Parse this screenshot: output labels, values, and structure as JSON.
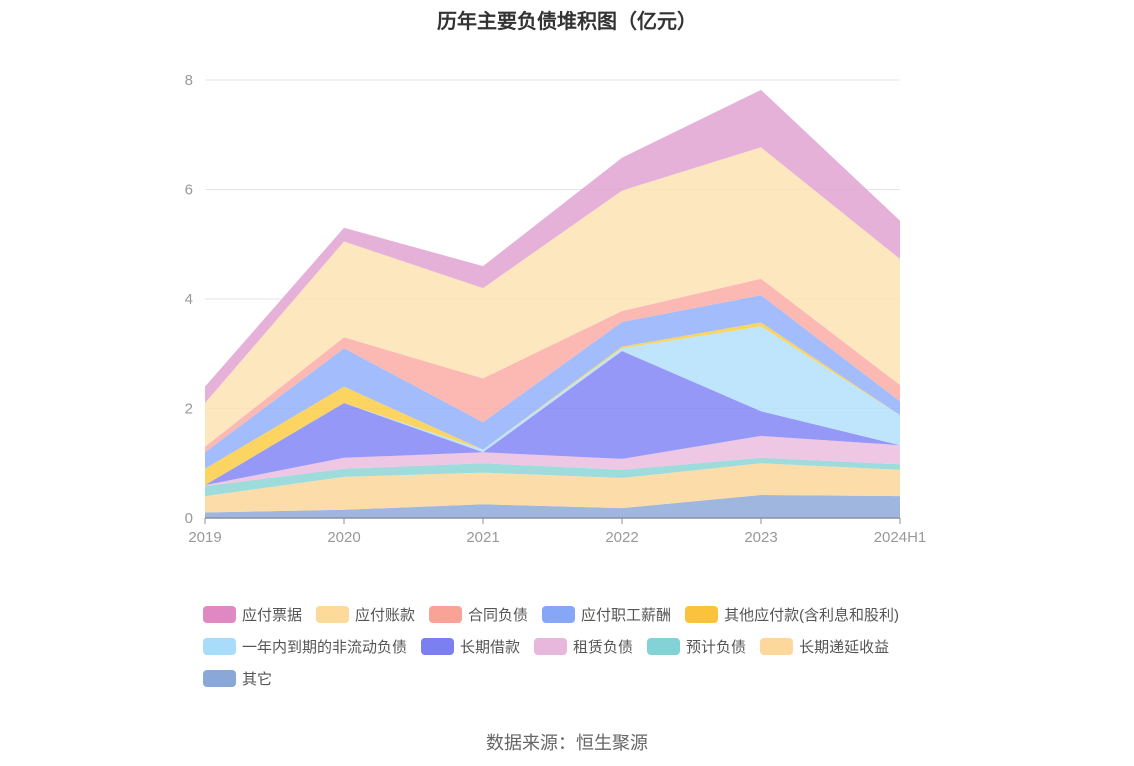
{
  "title": "历年主要负债堆积图（亿元）",
  "source": "数据来源：恒生聚源",
  "chart_data": {
    "type": "area",
    "stacked": true,
    "title": "历年主要负债堆积图（亿元）",
    "x": [
      "2019",
      "2020",
      "2021",
      "2022",
      "2023",
      "2024H1"
    ],
    "ylim": [
      0,
      8
    ],
    "yticks": [
      0,
      2,
      4,
      6,
      8
    ],
    "grid": true,
    "legend_position": "bottom",
    "series": [
      {
        "name": "其它",
        "color": "#8eaad8",
        "values": [
          0.1,
          0.15,
          0.25,
          0.18,
          0.42,
          0.4
        ]
      },
      {
        "name": "长期递延收益",
        "color": "#fcd79b",
        "values": [
          0.3,
          0.6,
          0.58,
          0.55,
          0.58,
          0.48
        ]
      },
      {
        "name": "预计负债",
        "color": "#8dd6d6",
        "values": [
          0.18,
          0.15,
          0.17,
          0.15,
          0.1,
          0.1
        ]
      },
      {
        "name": "租赁负债",
        "color": "#ebbddf",
        "values": [
          0.02,
          0.2,
          0.2,
          0.2,
          0.4,
          0.35
        ]
      },
      {
        "name": "长期借款",
        "color": "#8286f6",
        "values": [
          0.0,
          1.0,
          0.0,
          1.97,
          0.45,
          0.0
        ]
      },
      {
        "name": "一年内到期的非流动负债",
        "color": "#b3e1fb",
        "values": [
          0.0,
          0.0,
          0.05,
          0.05,
          1.55,
          0.55
        ]
      },
      {
        "name": "其他应付款(含利息和股利)",
        "color": "#fccc47",
        "values": [
          0.3,
          0.3,
          0.0,
          0.03,
          0.07,
          0.0
        ]
      },
      {
        "name": "应付职工薪酬",
        "color": "#93b0fa",
        "values": [
          0.3,
          0.7,
          0.5,
          0.45,
          0.5,
          0.25
        ]
      },
      {
        "name": "合同负债",
        "color": "#fbada7",
        "values": [
          0.1,
          0.2,
          0.8,
          0.2,
          0.3,
          0.3
        ]
      },
      {
        "name": "应付账款",
        "color": "#fde3b3",
        "values": [
          0.8,
          1.75,
          1.65,
          2.2,
          2.4,
          2.3
        ]
      },
      {
        "name": "应付票据",
        "color": "#e0a3d2",
        "values": [
          0.3,
          0.25,
          0.4,
          0.6,
          1.05,
          0.7
        ]
      }
    ]
  },
  "legend": [
    {
      "label": "应付票据",
      "color": "#df88c2"
    },
    {
      "label": "应付账款",
      "color": "#fdd99a"
    },
    {
      "label": "合同负债",
      "color": "#f9a397"
    },
    {
      "label": "应付职工薪酬",
      "color": "#86a6f6"
    },
    {
      "label": "其他应付款(含利息和股利)",
      "color": "#fbc33b"
    },
    {
      "label": "一年内到期的非流动负债",
      "color": "#a8dcfa"
    },
    {
      "label": "长期借款",
      "color": "#7b7ff2"
    },
    {
      "label": "租赁负债",
      "color": "#e8b7dc"
    },
    {
      "label": "预计负债",
      "color": "#82d2d6"
    },
    {
      "label": "长期递延收益",
      "color": "#fdd79c"
    },
    {
      "label": "其它",
      "color": "#89a8d8"
    }
  ]
}
